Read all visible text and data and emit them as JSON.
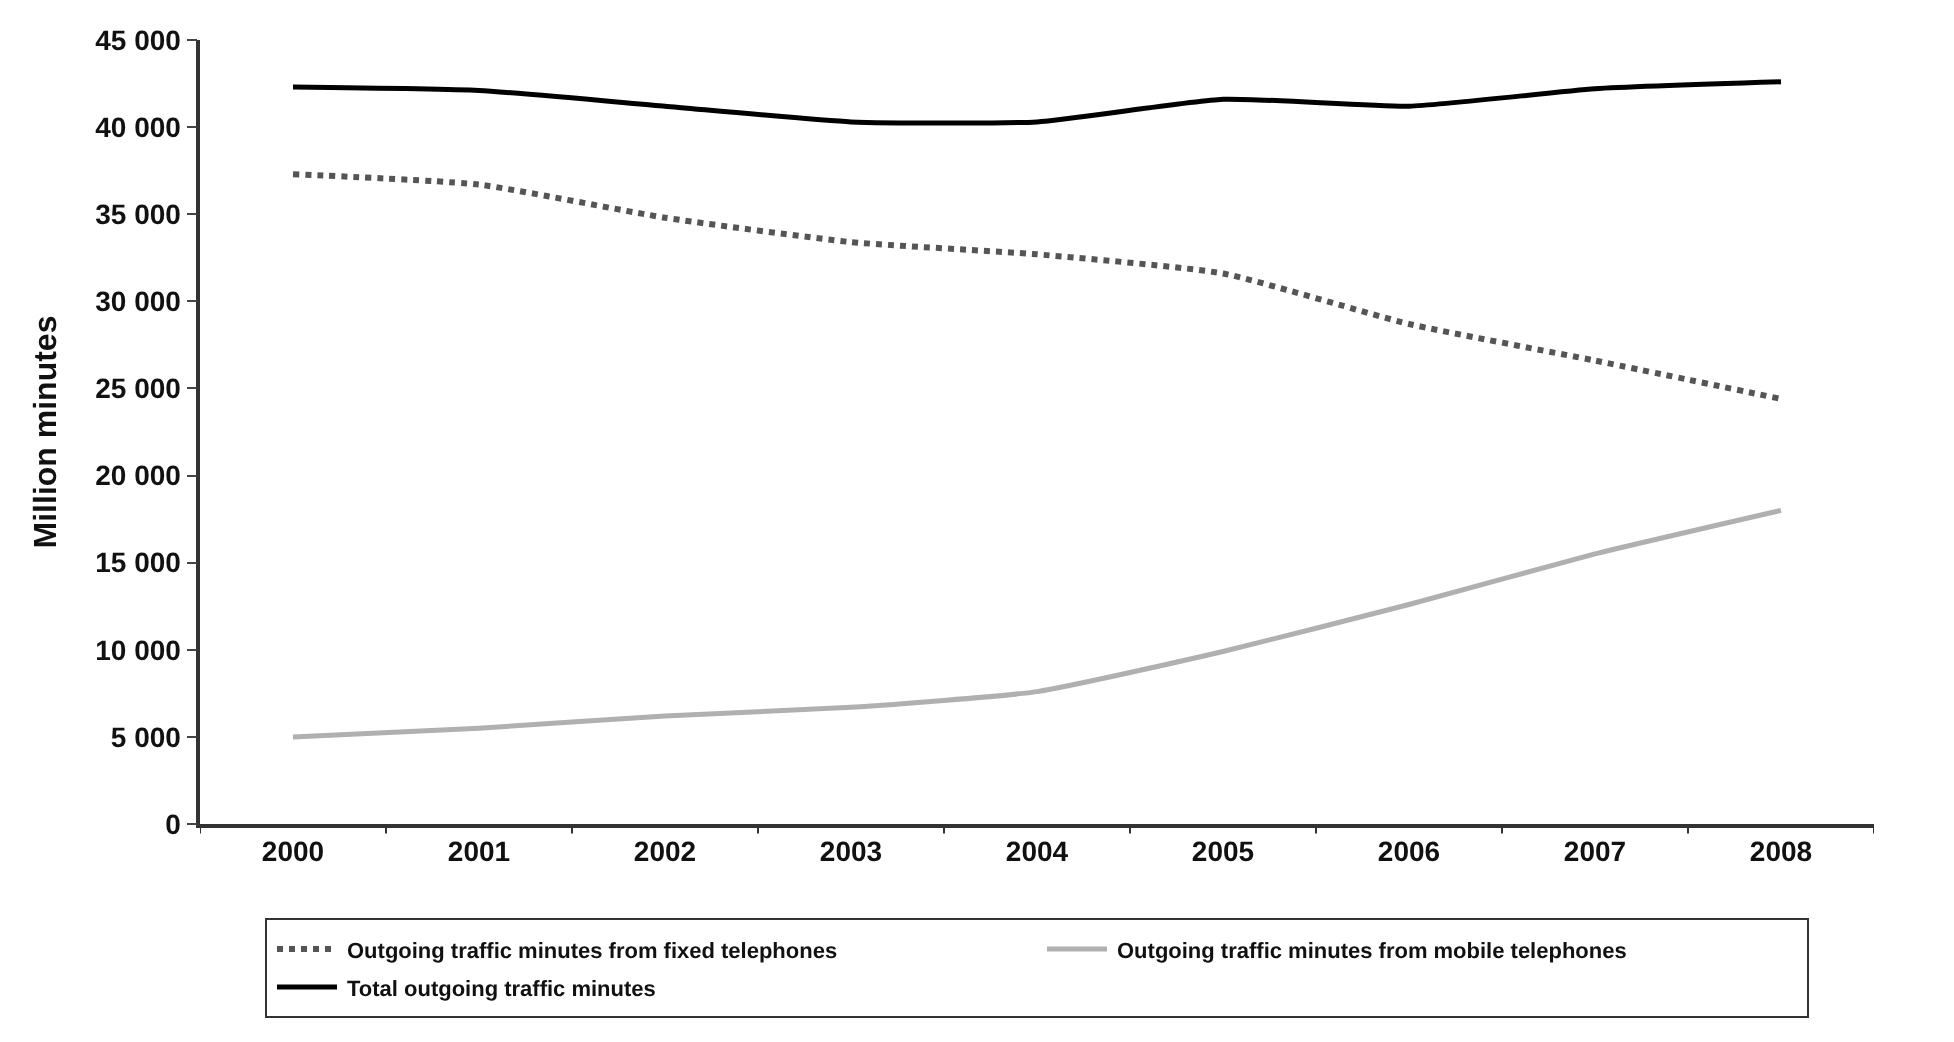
{
  "chart_data": {
    "type": "line",
    "ylabel": "Million minutes",
    "categories": [
      "2000",
      "2001",
      "2002",
      "2003",
      "2004",
      "2005",
      "2006",
      "2007",
      "2008"
    ],
    "ylim": [
      0,
      45000
    ],
    "yticks": [
      {
        "value": 0,
        "label": "0"
      },
      {
        "value": 5000,
        "label": "5 000"
      },
      {
        "value": 10000,
        "label": "10 000"
      },
      {
        "value": 15000,
        "label": "15 000"
      },
      {
        "value": 20000,
        "label": "20 000"
      },
      {
        "value": 25000,
        "label": "25 000"
      },
      {
        "value": 30000,
        "label": "30 000"
      },
      {
        "value": 35000,
        "label": "35 000"
      },
      {
        "value": 40000,
        "label": "40 000"
      },
      {
        "value": 45000,
        "label": "45 000"
      }
    ],
    "legend": "bottom",
    "marker": "none",
    "series": [
      {
        "name": "Outgoing traffic minutes from fixed telephones",
        "color": "#555555",
        "line_style": "dotted",
        "values": [
          37300,
          36700,
          34800,
          33400,
          32700,
          31600,
          28700,
          26600,
          24400
        ]
      },
      {
        "name": "Outgoing traffic minutes from mobile telephones",
        "color": "#b0b0b0",
        "line_style": "solid",
        "values": [
          5000,
          5500,
          6200,
          6700,
          7600,
          9900,
          12600,
          15500,
          18000
        ]
      },
      {
        "name": "Total outgoing traffic minutes",
        "color": "#000000",
        "line_style": "solid",
        "values": [
          42300,
          42100,
          41200,
          40300,
          40300,
          41600,
          41200,
          42200,
          42600
        ]
      }
    ]
  }
}
